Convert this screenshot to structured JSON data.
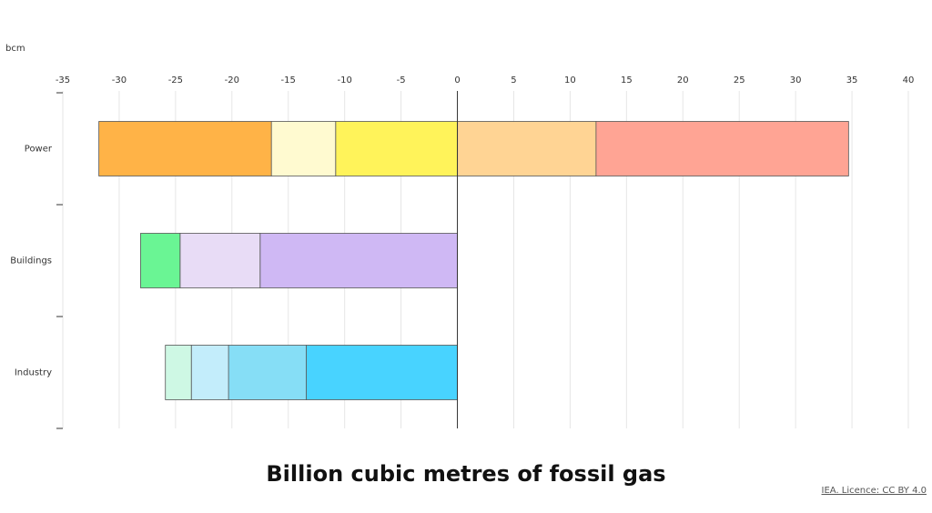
{
  "chart_data": {
    "type": "stacked-barh",
    "unit_label": "bcm",
    "title": "Billion cubic metres of fossil gas",
    "source": "IEA. Licence: CC BY 4.0",
    "categories": [
      "Power",
      "Buildings",
      "Industry"
    ],
    "xlim": [
      -35,
      40
    ],
    "xticks": [
      -35,
      -30,
      -25,
      -20,
      -15,
      -10,
      -5,
      0,
      5,
      10,
      15,
      20,
      25,
      30,
      35,
      40
    ],
    "grid": true,
    "series": [
      {
        "color": "#fff35a",
        "values": [
          -10.8,
          null,
          null
        ]
      },
      {
        "color": "#fffad0",
        "values": [
          -5.7,
          null,
          null
        ]
      },
      {
        "color": "#ffb347",
        "values": [
          -15.3,
          null,
          null
        ]
      },
      {
        "color": "#ffd494",
        "values": [
          12.3,
          null,
          null
        ]
      },
      {
        "color": "#ffa494",
        "values": [
          22.4,
          null,
          null
        ]
      },
      {
        "color": "#cfb8f4",
        "values": [
          null,
          -17.5,
          null
        ]
      },
      {
        "color": "#e8dcf6",
        "values": [
          null,
          -7.1,
          null
        ]
      },
      {
        "color": "#6af594",
        "values": [
          null,
          -3.5,
          null
        ]
      },
      {
        "color": "#48d3ff",
        "values": [
          null,
          null,
          -13.4
        ]
      },
      {
        "color": "#86def6",
        "values": [
          null,
          null,
          -6.9
        ]
      },
      {
        "color": "#c3edfb",
        "values": [
          null,
          null,
          -3.3
        ]
      },
      {
        "color": "#cef8e4",
        "values": [
          null,
          null,
          -2.3
        ]
      }
    ]
  }
}
